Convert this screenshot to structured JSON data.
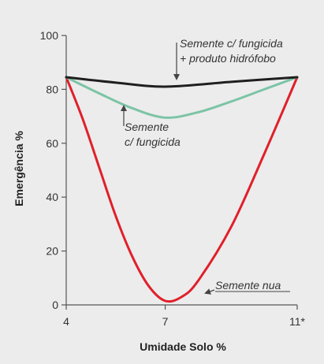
{
  "chart_data": {
    "type": "line",
    "xlabel": "Umidade Solo %",
    "ylabel": "Emergência %",
    "x_ticks": [
      "4",
      "7",
      "11*"
    ],
    "xlim": [
      4,
      11
    ],
    "ylim": [
      0,
      100
    ],
    "y_ticks": [
      0,
      20,
      40,
      60,
      80,
      100
    ],
    "grid": false,
    "series": [
      {
        "name": "Semente c/ fungicida + produto hidrófobo",
        "color": "#1f1f1f",
        "points": [
          [
            4,
            84.5
          ],
          [
            5.5,
            82.5
          ],
          [
            7,
            81
          ],
          [
            9,
            82.8
          ],
          [
            11,
            84.5
          ]
        ]
      },
      {
        "name": "Semente c/ fungicida",
        "color": "#7cc4a6",
        "points": [
          [
            4,
            84.5
          ],
          [
            5,
            78.5
          ],
          [
            6,
            73
          ],
          [
            7,
            69.5
          ],
          [
            8,
            71.5
          ],
          [
            9,
            75.5
          ],
          [
            10,
            80
          ],
          [
            11,
            84.5
          ]
        ]
      },
      {
        "name": "Semente nua",
        "color": "#e0202a",
        "points": [
          [
            4,
            84.5
          ],
          [
            4.5,
            69
          ],
          [
            5,
            51
          ],
          [
            5.5,
            33
          ],
          [
            6,
            18
          ],
          [
            6.5,
            7
          ],
          [
            7,
            1.5
          ],
          [
            7.5,
            3
          ],
          [
            8,
            9
          ],
          [
            9,
            29
          ],
          [
            10,
            56
          ],
          [
            11,
            84.5
          ]
        ]
      }
    ],
    "annotations": [
      {
        "lines": [
          "Semente c/ fungicida",
          "+ produto hidrófobo"
        ],
        "target": [
          7,
          81
        ]
      },
      {
        "lines": [
          "Semente",
          "c/ fungicida"
        ],
        "target": [
          6.3,
          72
        ]
      },
      {
        "lines": [
          "Semente nua"
        ],
        "target": [
          7.9,
          4
        ]
      }
    ]
  }
}
